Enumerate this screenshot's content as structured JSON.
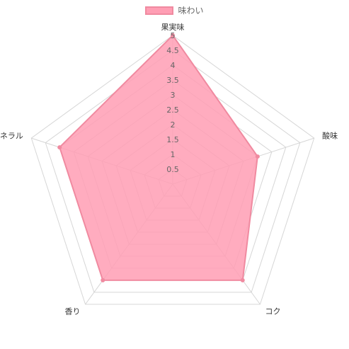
{
  "chart_data": {
    "type": "radar",
    "axes": [
      "果実味",
      "酸味",
      "コク",
      "香り",
      "ミネラル"
    ],
    "series": [
      {
        "name": "味わい",
        "values": [
          5,
          3,
          4,
          4,
          4
        ]
      }
    ],
    "r_range": [
      0,
      5
    ],
    "r_ticks": [
      "0.5",
      "1",
      "1.5",
      "2",
      "2.5",
      "3",
      "3.5",
      "4",
      "4.5",
      "5"
    ],
    "grid": true,
    "legend_position": "top",
    "colors": {
      "fill": "#ff9eb4",
      "stroke": "#f08aa0",
      "grid": "#d6d6d6"
    }
  }
}
